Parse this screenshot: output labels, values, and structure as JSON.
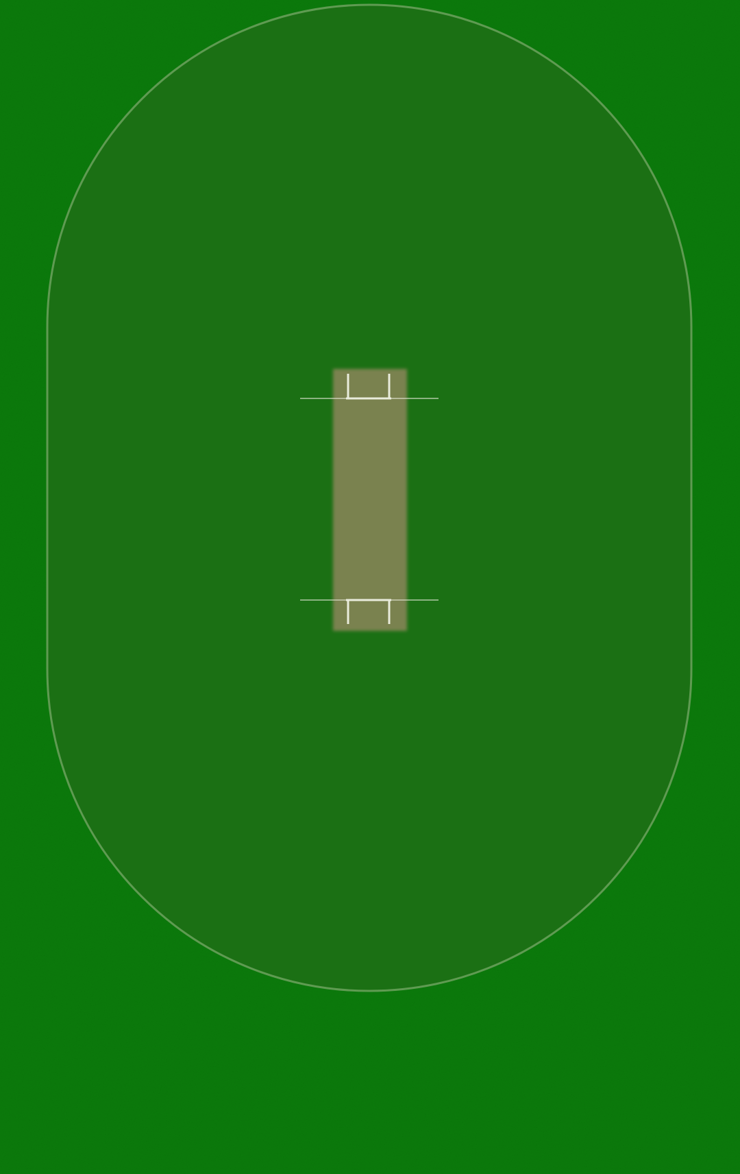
{
  "game": {
    "sport": "cricket",
    "view": "top-down field",
    "colors": {
      "outfield": "#0c7a0c",
      "inner_circle_fill": "#1b7014",
      "inner_circle_border": "#5f9b52",
      "pitch": "#7a8250",
      "crease_lines": "#e9ecdc",
      "grass_texture": "#0a6a0a"
    },
    "elements": {
      "outfield": {
        "icon": "grass-field"
      },
      "inner_circle": {
        "icon": "fielding-restriction-circle"
      },
      "pitch": {
        "icon": "cricket-pitch"
      },
      "top_crease": {
        "icon": "popping-crease"
      },
      "bottom_crease": {
        "icon": "popping-crease"
      }
    }
  }
}
